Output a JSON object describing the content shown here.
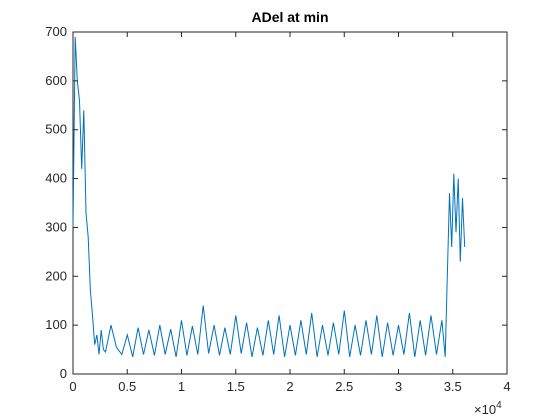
{
  "chart_data": {
    "type": "line",
    "title": "ADel at min",
    "xlabel": "",
    "ylabel": "",
    "xlim": [
      0,
      40000
    ],
    "ylim": [
      0,
      700
    ],
    "x_exponent_label": "×10",
    "x_exponent_power": "4",
    "x_ticks": [
      0,
      5000,
      10000,
      15000,
      20000,
      25000,
      30000,
      35000,
      40000
    ],
    "x_tick_labels": [
      "0",
      "0.5",
      "1",
      "1.5",
      "2",
      "2.5",
      "3",
      "3.5",
      "4"
    ],
    "y_ticks": [
      0,
      100,
      200,
      300,
      400,
      500,
      600,
      700
    ],
    "y_tick_labels": [
      "0",
      "100",
      "200",
      "300",
      "400",
      "500",
      "600",
      "700"
    ],
    "grid": false,
    "line_color": "#0072bd",
    "series": [
      {
        "x": [
          0,
          200,
          400,
          600,
          800,
          1000,
          1200,
          1400,
          1600,
          1800,
          2000,
          2200,
          2400,
          2600,
          2800,
          3000,
          3500,
          4000,
          4500,
          5000,
          5500,
          6000,
          6500,
          7000,
          7500,
          8000,
          8500,
          9000,
          9500,
          10000,
          10500,
          11000,
          11500,
          12000,
          12500,
          13000,
          13500,
          14000,
          14500,
          15000,
          15500,
          16000,
          16500,
          17000,
          17500,
          18000,
          18500,
          19000,
          19500,
          20000,
          20500,
          21000,
          21500,
          22000,
          22500,
          23000,
          23500,
          24000,
          24500,
          25000,
          25500,
          26000,
          26500,
          27000,
          27500,
          28000,
          28500,
          29000,
          29500,
          30000,
          30500,
          31000,
          31500,
          32000,
          32500,
          33000,
          33500,
          34000,
          34300,
          34500,
          34700,
          34900,
          35100,
          35300,
          35500,
          35700,
          35900,
          36100
        ],
        "y": [
          300,
          690,
          600,
          560,
          420,
          540,
          330,
          280,
          170,
          120,
          60,
          80,
          40,
          90,
          50,
          45,
          100,
          55,
          40,
          80,
          35,
          95,
          40,
          90,
          38,
          100,
          40,
          92,
          35,
          110,
          38,
          98,
          40,
          140,
          42,
          100,
          38,
          95,
          40,
          120,
          42,
          105,
          35,
          95,
          38,
          110,
          40,
          120,
          35,
          100,
          38,
          110,
          40,
          125,
          35,
          100,
          38,
          105,
          40,
          130,
          35,
          100,
          38,
          110,
          40,
          120,
          35,
          105,
          38,
          100,
          40,
          125,
          35,
          110,
          38,
          120,
          40,
          110,
          35,
          200,
          370,
          260,
          410,
          290,
          400,
          230,
          360,
          260
        ]
      }
    ]
  }
}
